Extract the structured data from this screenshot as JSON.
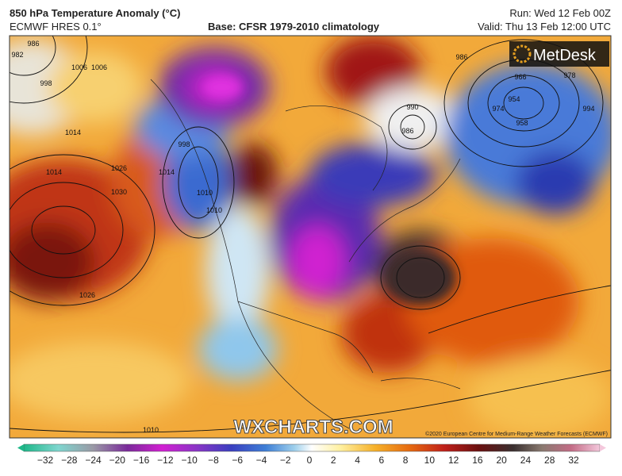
{
  "header": {
    "title": "850 hPa Temperature Anomaly (°C)",
    "model": "ECMWF HRES 0.1°",
    "base": "Base: CFSR 1979-2010 climatology",
    "run": "Run: Wed 12 Feb 00Z",
    "valid": "Valid: Thu 13 Feb 12:00 UTC"
  },
  "map": {
    "logo": "MetDesk",
    "watermark": "WXCHARTS.COM",
    "copyright": "©2020 European Centre for Medium-Range Weather Forecasts (ECMWF)",
    "isobar_labels": [
      "982",
      "986",
      "998",
      "1014",
      "1006",
      "998",
      "1014",
      "1010",
      "1026",
      "1030",
      "1006",
      "1014",
      "1026",
      "1010",
      "1010",
      "990",
      "986",
      "986",
      "966",
      "954",
      "958",
      "974",
      "978",
      "994"
    ]
  },
  "legend": {
    "labels": [
      "−32",
      "−28",
      "−24",
      "−20",
      "−16",
      "−12",
      "−10",
      "−8",
      "−6",
      "−4",
      "−2",
      "0",
      "2",
      "4",
      "6",
      "8",
      "10",
      "12",
      "16",
      "20",
      "24",
      "28",
      "32"
    ]
  }
}
